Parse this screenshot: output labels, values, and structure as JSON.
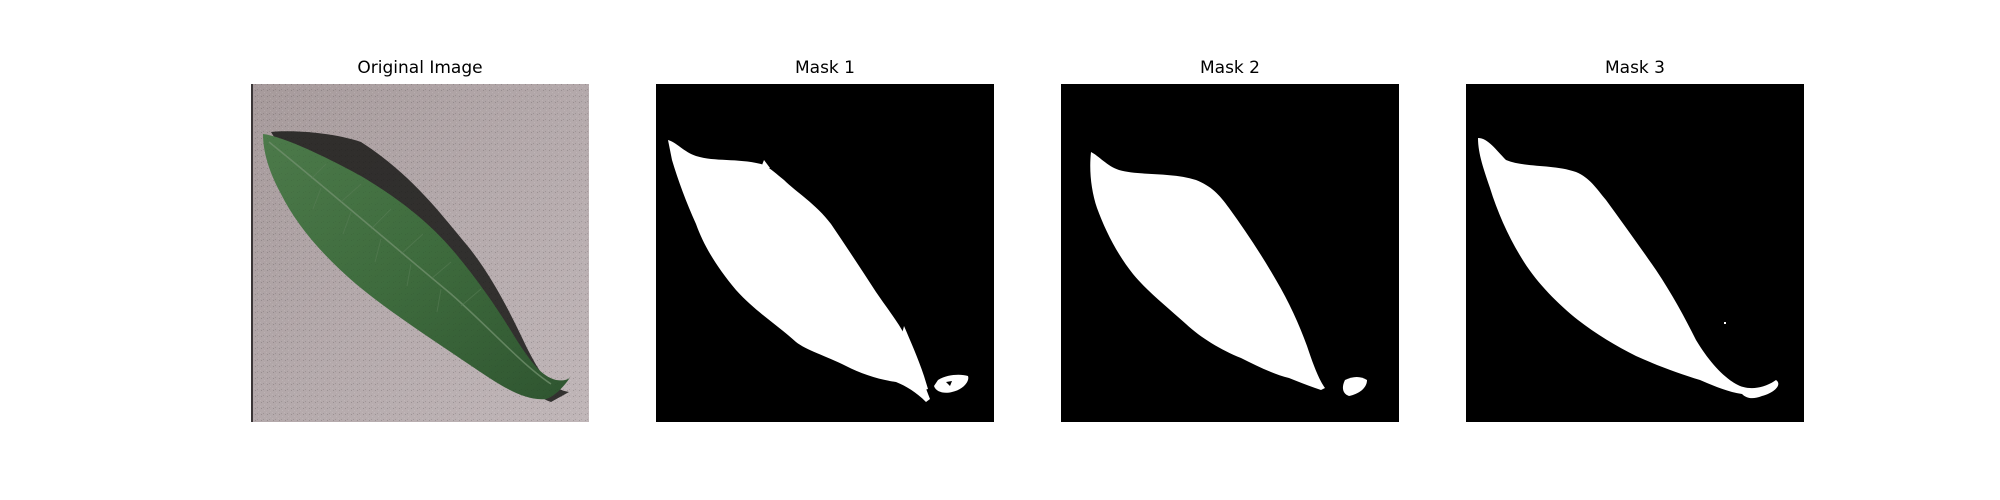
{
  "figure": {
    "panels": [
      {
        "title": "Original Image",
        "kind": "photo"
      },
      {
        "title": "Mask 1",
        "kind": "mask"
      },
      {
        "title": "Mask 2",
        "kind": "mask"
      },
      {
        "title": "Mask 3",
        "kind": "mask"
      }
    ]
  },
  "colors": {
    "background": "#ffffff",
    "mask_background": "#000000",
    "mask_foreground": "#ffffff",
    "photo_background": "#b2a7a9",
    "leaf": "#3d6a3c",
    "leaf_shadow": "#151513"
  }
}
